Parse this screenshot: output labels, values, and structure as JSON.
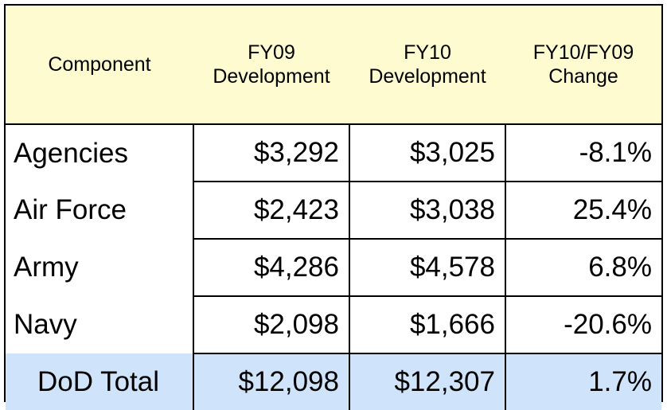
{
  "chart_data": {
    "type": "table",
    "columns": [
      "Component",
      "FY09 Development",
      "FY10 Development",
      "FY10/FY09 Change"
    ],
    "header_lines": [
      [
        "Component"
      ],
      [
        "FY09",
        "Development"
      ],
      [
        "FY10",
        "Development"
      ],
      [
        "FY10/FY09",
        "Change"
      ]
    ],
    "rows": [
      {
        "component": "Agencies",
        "fy09": "$3,292",
        "fy10": "$3,025",
        "change": "-8.1%"
      },
      {
        "component": "Air Force",
        "fy09": "$2,423",
        "fy10": "$3,038",
        "change": "25.4%"
      },
      {
        "component": "Army",
        "fy09": "$4,286",
        "fy10": "$4,578",
        "change": "6.8%"
      },
      {
        "component": "Navy",
        "fy09": "$2,098",
        "fy10": "$1,666",
        "change": "-20.6%"
      }
    ],
    "total": {
      "component": "DoD Total",
      "fy09": "$12,098",
      "fy10": "$12,307",
      "change": "1.7%"
    },
    "colors": {
      "header_bg": "#fdfbcf",
      "total_bg": "#cfe4fb",
      "border": "#000000"
    }
  }
}
